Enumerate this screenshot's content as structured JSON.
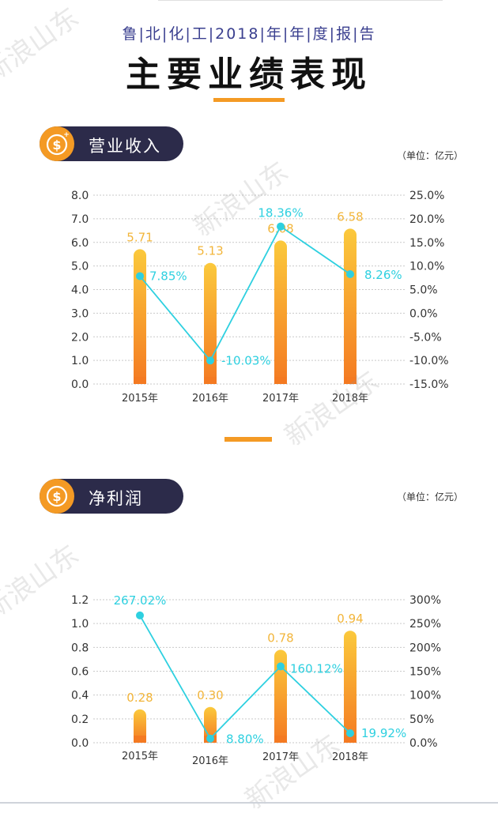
{
  "header": {
    "subtitle": "鲁|北|化|工|2018|年|年|度|报|告",
    "title": "主要业绩表现"
  },
  "watermark": "新浪山东",
  "colors": {
    "accent": "#f49a24",
    "bar_top": "#fbc93c",
    "bar_bottom": "#f47a22",
    "line": "#2ed0e0",
    "pill": "#2c2b4a",
    "value_label": "#f2b53a"
  },
  "sections": [
    {
      "label": "营业收入",
      "icon": "dollar-coin-icon",
      "unit": "（单位：亿元）"
    },
    {
      "label": "净利润",
      "icon": "dollar-coin-icon",
      "unit": "（单位：亿元）"
    }
  ],
  "chart_data": [
    {
      "type": "bar",
      "categories": [
        "2015年",
        "2016年",
        "2017年",
        "2018年"
      ],
      "series": [
        {
          "values": [
            5.71,
            5.13,
            6.08,
            6.58
          ],
          "labels": [
            "5.71",
            "5.13",
            "6.08",
            "6.58"
          ],
          "kind": "bar",
          "axis": "left"
        },
        {
          "values": [
            7.85,
            -10.03,
            18.36,
            8.26
          ],
          "labels": [
            "7.85%",
            "-10.03%",
            "18.36%",
            "8.26%"
          ],
          "kind": "line",
          "axis": "right"
        }
      ],
      "y_left": {
        "ticks": [
          0,
          1,
          2,
          3,
          4,
          5,
          6,
          7,
          8
        ],
        "tick_labels": [
          "0.0",
          "1.0",
          "2.0",
          "3.0",
          "4.0",
          "5.0",
          "6.0",
          "7.0",
          "8.0"
        ],
        "ylim": [
          0,
          8
        ]
      },
      "y_right": {
        "ticks": [
          -15,
          -10,
          -5,
          0,
          5,
          10,
          15,
          20,
          25
        ],
        "tick_labels": [
          "-15.0%",
          "-10.0%",
          "-5.0%",
          "0.0%",
          "5.0%",
          "10.0%",
          "15.0%",
          "20.0%",
          "25.0%"
        ],
        "ylim": [
          -15,
          25
        ]
      },
      "grid": true
    },
    {
      "type": "bar",
      "categories": [
        "2015年",
        "2016年",
        "2017年",
        "2018年"
      ],
      "series": [
        {
          "values": [
            0.28,
            0.3,
            0.78,
            0.94
          ],
          "labels": [
            "0.28",
            "0.30",
            "0.78",
            "0.94"
          ],
          "kind": "bar",
          "axis": "left"
        },
        {
          "values": [
            267.02,
            8.8,
            160.12,
            19.92
          ],
          "labels": [
            "267.02%",
            "8.80%",
            "160.12%",
            "19.92%"
          ],
          "kind": "line",
          "axis": "right"
        }
      ],
      "y_left": {
        "ticks": [
          0,
          0.2,
          0.4,
          0.6,
          0.8,
          1.0,
          1.2
        ],
        "tick_labels": [
          "0.0",
          "0.2",
          "0.4",
          "0.6",
          "0.8",
          "1.0",
          "1.2"
        ],
        "ylim": [
          0,
          1.2
        ]
      },
      "y_right": {
        "ticks": [
          0,
          50,
          100,
          150,
          200,
          250,
          300
        ],
        "tick_labels": [
          "0.0%",
          "50%",
          "100%",
          "150%",
          "200%",
          "250%",
          "300%"
        ],
        "ylim": [
          0,
          300
        ]
      },
      "grid": true
    }
  ]
}
